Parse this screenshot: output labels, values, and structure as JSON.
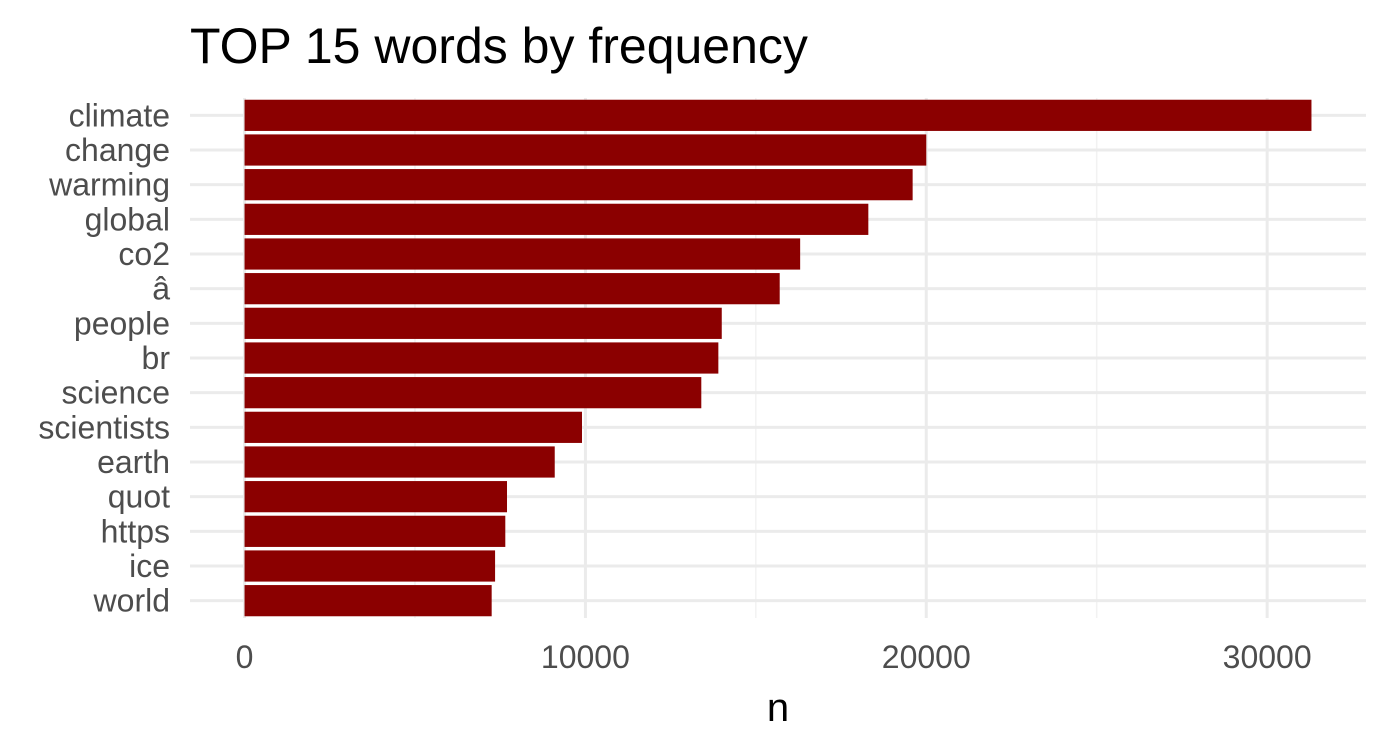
{
  "chart_data": {
    "type": "bar",
    "orientation": "horizontal",
    "title": "TOP 15 words by frequency",
    "xlabel": "n",
    "ylabel": "",
    "categories": [
      "climate",
      "change",
      "warming",
      "global",
      "co2",
      "â",
      "people",
      "br",
      "science",
      "scientists",
      "earth",
      "quot",
      "https",
      "ice",
      "world"
    ],
    "values": [
      31300,
      20000,
      19600,
      18300,
      16300,
      15700,
      14000,
      13900,
      13400,
      9900,
      9100,
      7700,
      7650,
      7350,
      7250
    ],
    "xlim": [
      -1600,
      32900
    ],
    "x_ticks": [
      0,
      10000,
      20000,
      30000
    ],
    "x_tick_labels": [
      "0",
      "10000",
      "20000",
      "30000"
    ],
    "grid": true,
    "legend": "none",
    "colors": {
      "bar": "#8b0000",
      "grid_major": "#ebebeb",
      "grid_minor": "#f2f2f2",
      "text": "#4d4d4d",
      "title": "#000000"
    }
  }
}
